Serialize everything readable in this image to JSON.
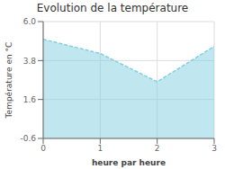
{
  "chart_data": {
    "type": "area",
    "title": "Evolution de la température",
    "xlabel": "heure par heure",
    "ylabel": "Température en °C",
    "x": [
      0,
      1,
      2,
      3
    ],
    "values": [
      5.0,
      4.2,
      2.6,
      4.6
    ],
    "xlim": [
      0,
      3
    ],
    "ylim": [
      -0.6,
      6.0
    ],
    "xticks": [
      0,
      1,
      2,
      3
    ],
    "yticks": [
      -0.6,
      1.6,
      3.8,
      {
        "value": 6.0,
        "label": "6.0"
      }
    ],
    "grid": true,
    "color": "#82cfe0",
    "line_style": "dashed"
  }
}
